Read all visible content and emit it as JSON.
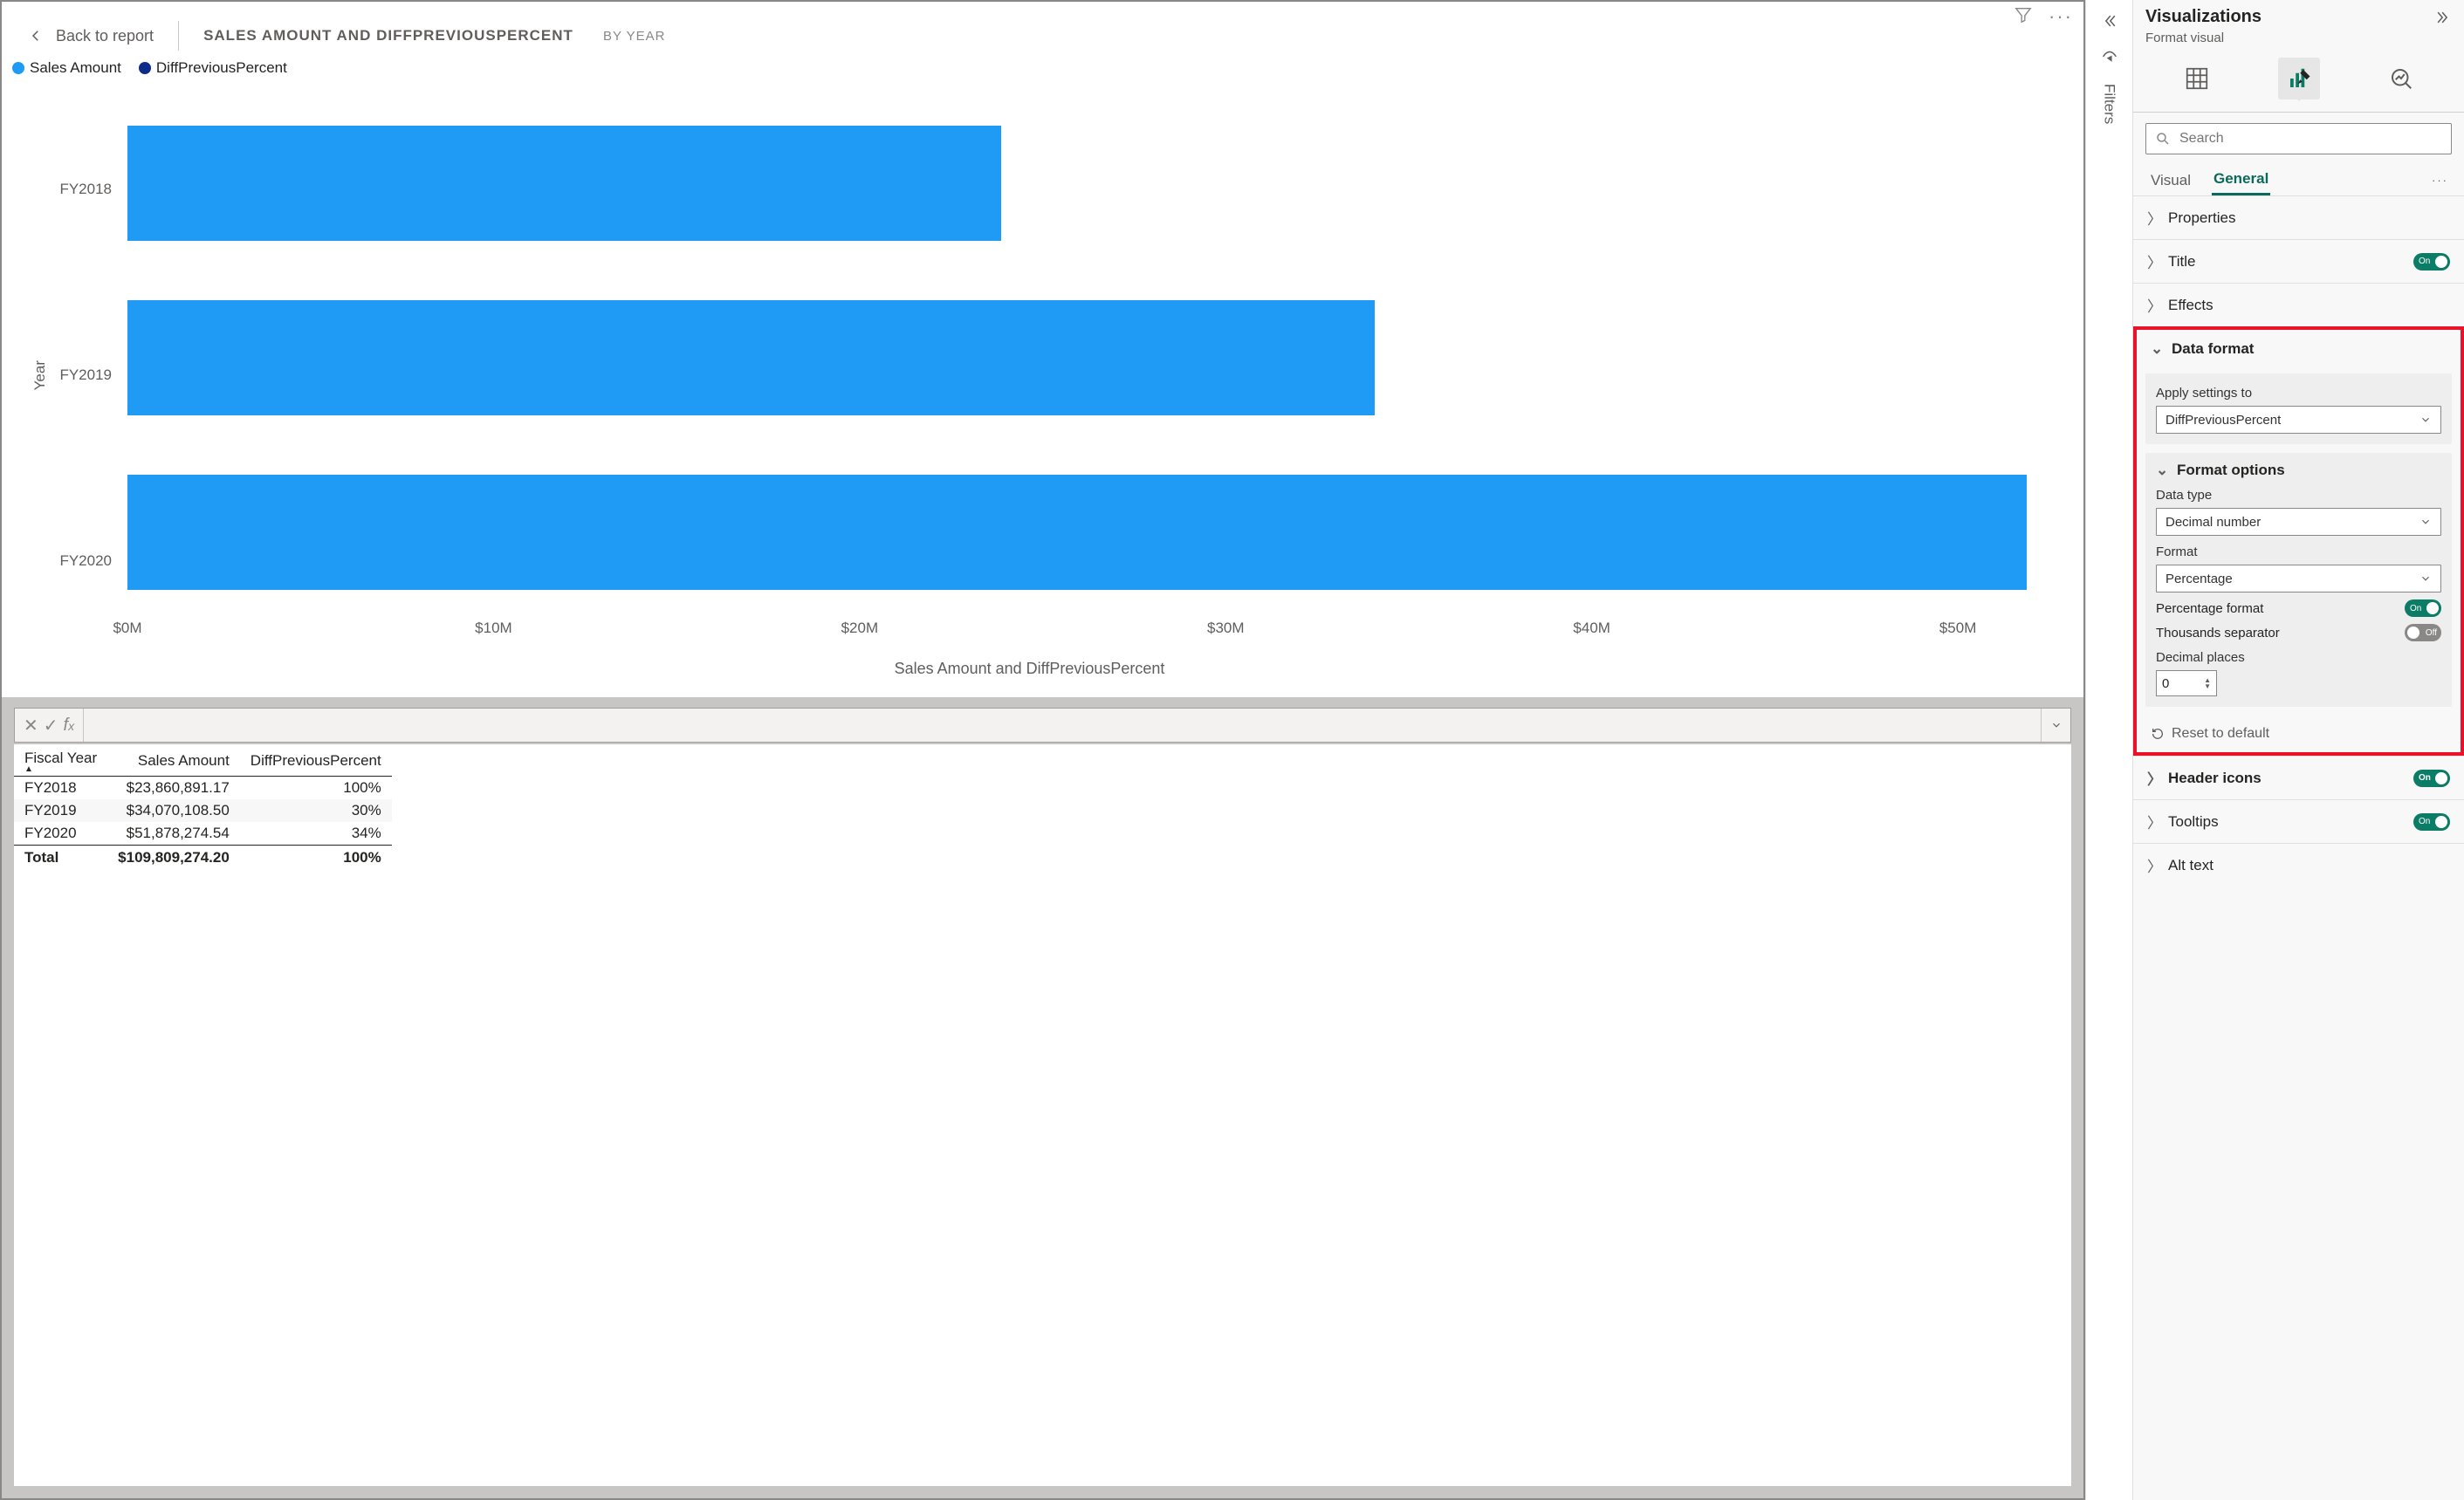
{
  "colors": {
    "bar": "#1f9bf5",
    "legend2": "#0d2b88",
    "toggle_on": "#0b7c66",
    "toggle_off": "#8a8886",
    "highlight": "#e8132a"
  },
  "header": {
    "back_label": "Back to report",
    "title": "SALES AMOUNT AND DIFFPREVIOUSPERCENT",
    "subtitle": "BY YEAR"
  },
  "legend": {
    "items": [
      {
        "label": "Sales Amount",
        "color": "#1f9bf5"
      },
      {
        "label": "DiffPreviousPercent",
        "color": "#0d2b88"
      }
    ]
  },
  "chart": {
    "type": "bar-horizontal",
    "y_axis_title": "Year",
    "x_axis_title": "Sales Amount and DiffPreviousPercent",
    "categories": [
      "FY2018",
      "FY2019",
      "FY2020"
    ],
    "values_m": [
      23.86,
      34.07,
      51.88
    ],
    "xlim": [
      0,
      52
    ],
    "xticks": [
      "$0M",
      "$10M",
      "$20M",
      "$30M",
      "$40M",
      "$50M"
    ],
    "xtick_positions": [
      0,
      10,
      20,
      30,
      40,
      50
    ],
    "bar_color": "#1f9bf5",
    "background": "#ffffff",
    "label_fontsize": 17
  },
  "table": {
    "columns": [
      "Fiscal Year",
      "Sales Amount",
      "DiffPreviousPercent"
    ],
    "rows": [
      {
        "year": "FY2018",
        "amount": "$23,860,891.17",
        "pct": "100%"
      },
      {
        "year": "FY2019",
        "amount": "$34,070,108.50",
        "pct": "30%"
      },
      {
        "year": "FY2020",
        "amount": "$51,878,274.54",
        "pct": "34%"
      }
    ],
    "total": {
      "label": "Total",
      "amount": "$109,809,274.20",
      "pct": "100%"
    }
  },
  "filters_rail": {
    "label": "Filters"
  },
  "viz": {
    "title": "Visualizations",
    "subtitle": "Format visual",
    "search_placeholder": "Search",
    "tabs": {
      "visual": "Visual",
      "general": "General"
    },
    "sections": {
      "properties": "Properties",
      "title": "Title",
      "effects": "Effects",
      "data_format": "Data format",
      "header_icons": "Header icons",
      "tooltips": "Tooltips",
      "alt_text": "Alt text"
    },
    "data_format": {
      "apply_label": "Apply settings to",
      "apply_value": "DiffPreviousPercent",
      "format_options": "Format options",
      "data_type_label": "Data type",
      "data_type_value": "Decimal number",
      "format_label": "Format",
      "format_value": "Percentage",
      "pct_format_label": "Percentage format",
      "thousands_label": "Thousands separator",
      "decimal_label": "Decimal places",
      "decimal_value": "0",
      "reset": "Reset to default"
    },
    "toggles": {
      "title": "On",
      "pct_format": "On",
      "thousands": "Off",
      "header_icons": "On",
      "tooltips": "On"
    }
  }
}
